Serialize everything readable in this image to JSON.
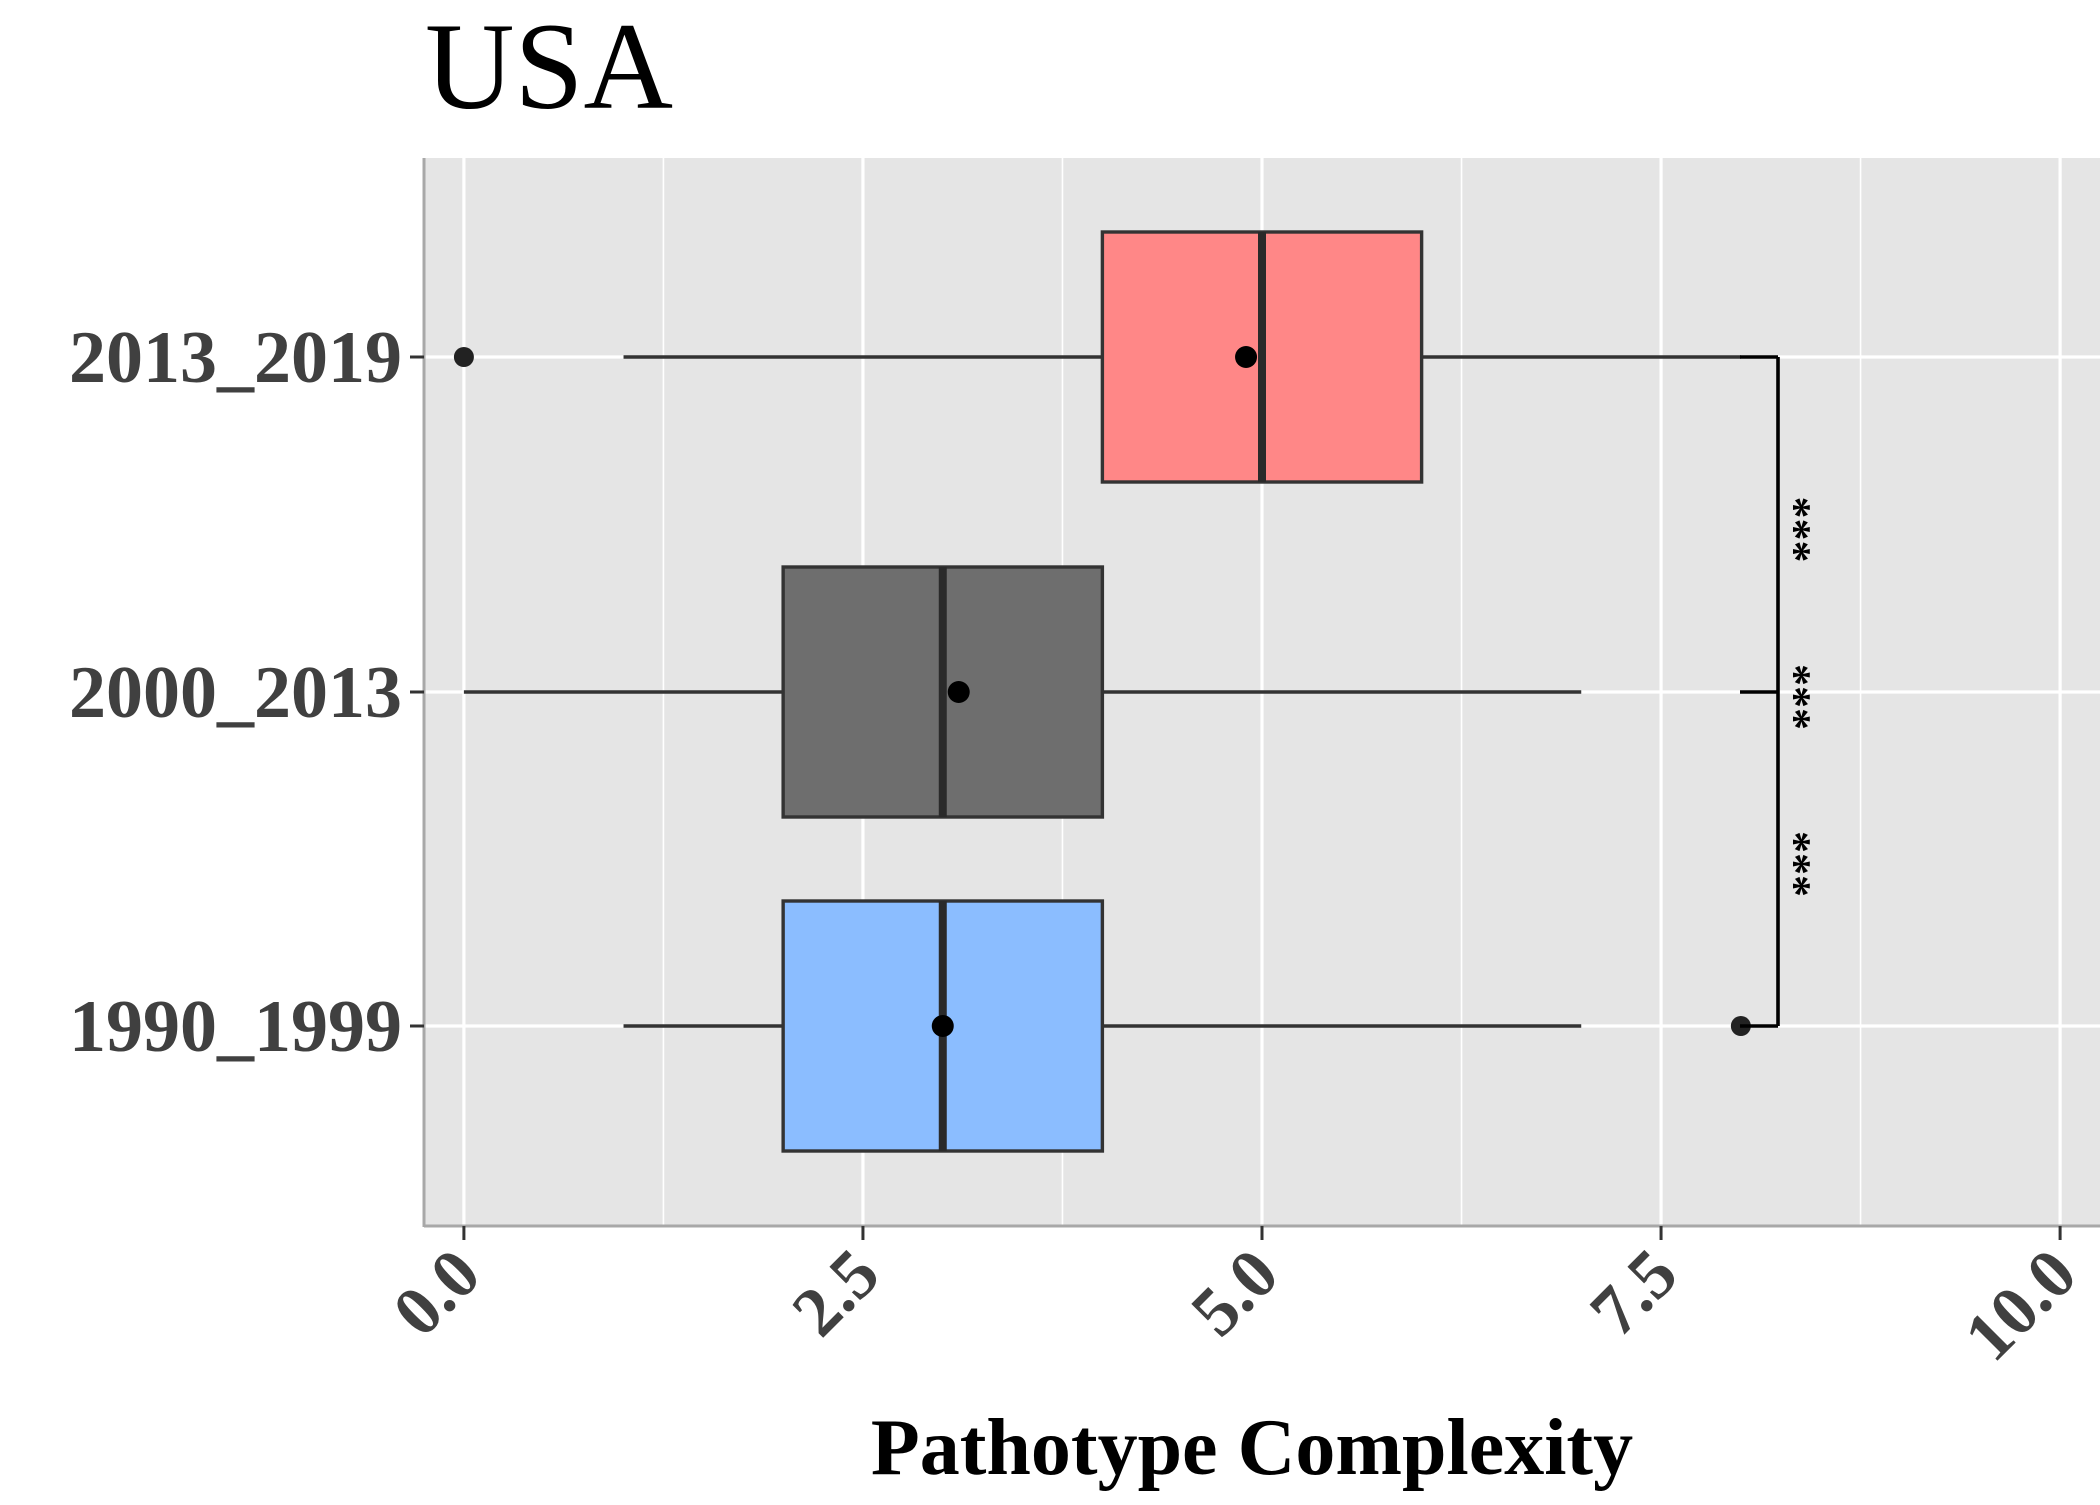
{
  "chart_data": {
    "type": "boxplot",
    "orientation": "horizontal",
    "title": "USA",
    "xlabel": "Pathotype Complexity",
    "ylabel": "",
    "xlim": [
      -0.25,
      10.25
    ],
    "x_ticks": [
      0,
      2.5,
      5,
      7.5,
      10
    ],
    "x_tick_labels": [
      "0.0",
      "2.5",
      "5.0",
      "7.5",
      "10.0"
    ],
    "x_tick_rotation_deg": 45,
    "grid": true,
    "background": "#E5E5E5",
    "categories": [
      "2013_2019",
      "2000_2013",
      "1990_1999"
    ],
    "groups": [
      {
        "label": "2013_2019",
        "fill": "#FF8787",
        "whisker_low": 1,
        "q1": 4,
        "median": 5,
        "q3": 6,
        "whisker_high": 8,
        "mean": 4.9,
        "outliers": [
          0
        ]
      },
      {
        "label": "2000_2013",
        "fill": "#6E6E6E",
        "whisker_low": 0,
        "q1": 2,
        "median": 3,
        "q3": 4,
        "whisker_high": 7,
        "mean": 3.1,
        "outliers": []
      },
      {
        "label": "1990_1999",
        "fill": "#8BBDFF",
        "whisker_low": 1,
        "q1": 2,
        "median": 3,
        "q3": 4,
        "whisker_high": 7,
        "mean": 3.0,
        "outliers": [
          8
        ]
      }
    ],
    "significance": {
      "bracket_categories": [
        "2013_2019",
        "2000_2013",
        "1990_1999"
      ],
      "labels": [
        "***",
        "***",
        "***"
      ]
    }
  }
}
